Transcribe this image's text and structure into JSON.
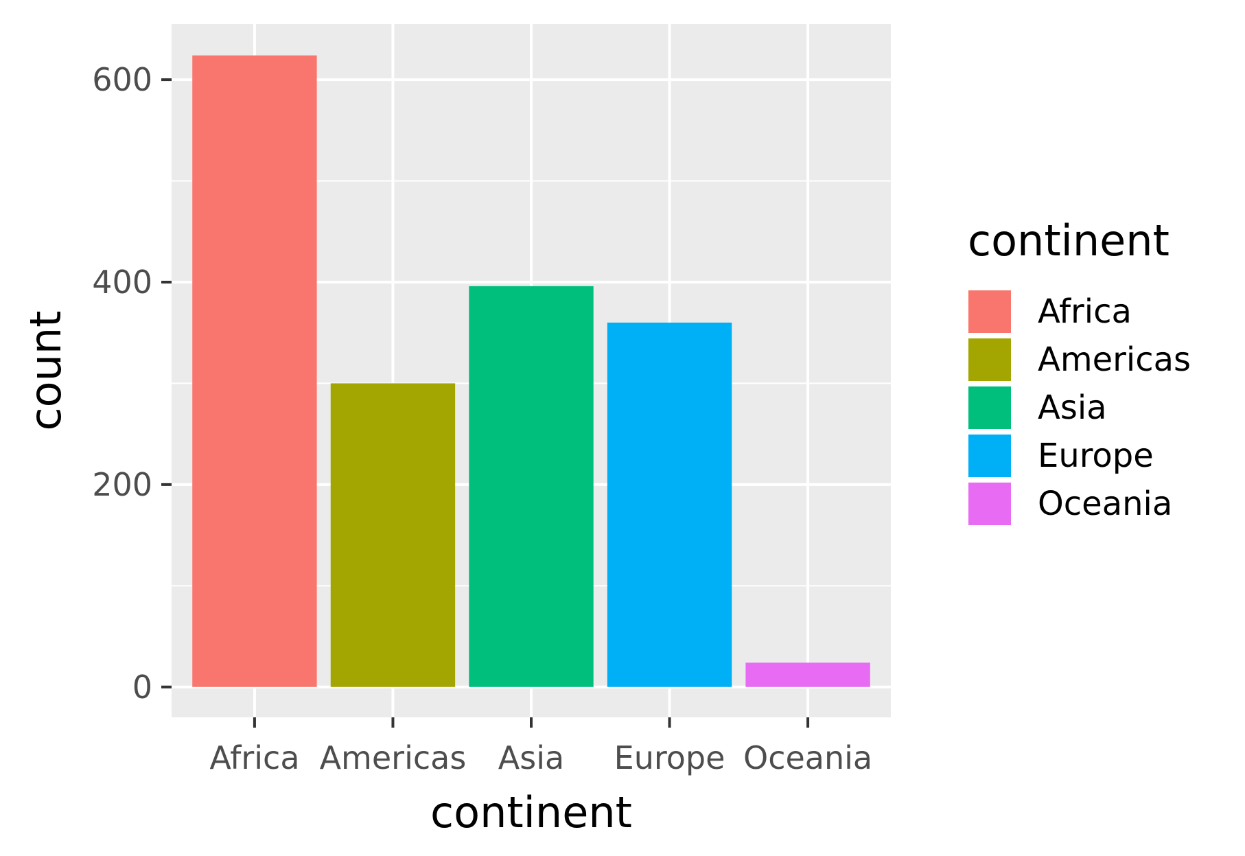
{
  "chart_data": {
    "type": "bar",
    "categories": [
      "Africa",
      "Americas",
      "Asia",
      "Europe",
      "Oceania"
    ],
    "values": [
      624,
      300,
      396,
      360,
      24
    ],
    "colors": [
      "#F8766D",
      "#A3A500",
      "#00BF7D",
      "#00B0F6",
      "#E76BF3"
    ],
    "xlabel": "continent",
    "ylabel": "count",
    "ylim": [
      -30,
      655
    ],
    "y_ticks": [
      0,
      200,
      400,
      600
    ],
    "y_tick_labels": [
      "0",
      "200",
      "400",
      "600"
    ],
    "y_minor_gridlines": [
      100,
      300,
      500
    ],
    "grid": true,
    "panel_background": "#EBEBEB",
    "gridline_color": "#FFFFFF",
    "legend": {
      "title": "continent",
      "position": "right",
      "items": [
        "Africa",
        "Americas",
        "Asia",
        "Europe",
        "Oceania"
      ]
    }
  }
}
